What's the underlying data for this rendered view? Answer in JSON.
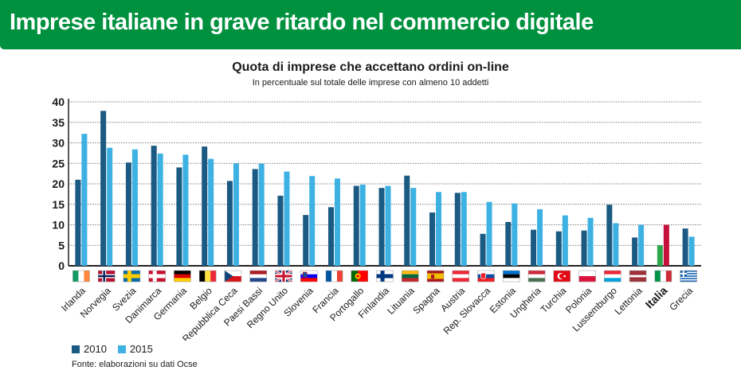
{
  "header": {
    "title": "Imprese italiane in grave ritardo nel commercio digitale"
  },
  "colors": {
    "header_green": "#00913f",
    "series_2010": "#1b5a82",
    "series_2015": "#3eb1e3",
    "italia_2010": "#2ea84a",
    "italia_2015": "#c4103a"
  },
  "legend": {
    "label_2010": "2010",
    "label_2015": "2015"
  },
  "source": "Fonte: elaborazioni su dati Ocse",
  "chart_data": {
    "type": "bar",
    "title": "Quota di imprese che accettano ordini on-line",
    "subtitle": "In percentuale sul totale delle imprese con almeno 10 addetti",
    "xlabel": "",
    "ylabel": "",
    "ylim": [
      0,
      40
    ],
    "yticks": [
      0,
      5,
      10,
      15,
      20,
      25,
      30,
      35,
      40
    ],
    "grid": true,
    "highlight_category": "Italia",
    "categories": [
      "Irlanda",
      "Norvegia",
      "Svezia",
      "Danimarca",
      "Germania",
      "Belgio",
      "Repubblica Ceca",
      "Paesi Bassi",
      "Regno Unito",
      "Slovenia",
      "Francia",
      "Portogallo",
      "Finlandia",
      "Lituania",
      "Spagna",
      "Austria",
      "Rep. Slovacca",
      "Estonia",
      "Ungheria",
      "Turchia",
      "Polonia",
      "Lussemburgo",
      "Lettonia",
      "Italia",
      "Grecia"
    ],
    "flag_icons": [
      "ireland-flag-icon",
      "norway-flag-icon",
      "sweden-flag-icon",
      "denmark-flag-icon",
      "germany-flag-icon",
      "belgium-flag-icon",
      "czech-republic-flag-icon",
      "netherlands-flag-icon",
      "united-kingdom-flag-icon",
      "slovenia-flag-icon",
      "france-flag-icon",
      "portugal-flag-icon",
      "finland-flag-icon",
      "lithuania-flag-icon",
      "spain-flag-icon",
      "austria-flag-icon",
      "slovakia-flag-icon",
      "estonia-flag-icon",
      "hungary-flag-icon",
      "turkey-flag-icon",
      "poland-flag-icon",
      "luxembourg-flag-icon",
      "latvia-flag-icon",
      "italy-flag-icon",
      "greece-flag-icon"
    ],
    "series": [
      {
        "name": "2010",
        "values": [
          21,
          37.8,
          25.2,
          29.3,
          24,
          29.1,
          20.7,
          23.6,
          17.1,
          12.4,
          14.3,
          19.5,
          19,
          22,
          13,
          17.8,
          7.8,
          10.7,
          8.8,
          8.4,
          8.6,
          14.9,
          6.9,
          5,
          9.1
        ]
      },
      {
        "name": "2015",
        "values": [
          32.2,
          28.8,
          28.4,
          27.4,
          27.1,
          26.1,
          25,
          24.9,
          23,
          21.9,
          21.3,
          19.8,
          19.5,
          19,
          18,
          18,
          15.6,
          15.2,
          13.8,
          12.3,
          11.7,
          10.4,
          10,
          10,
          7.1
        ]
      }
    ]
  }
}
